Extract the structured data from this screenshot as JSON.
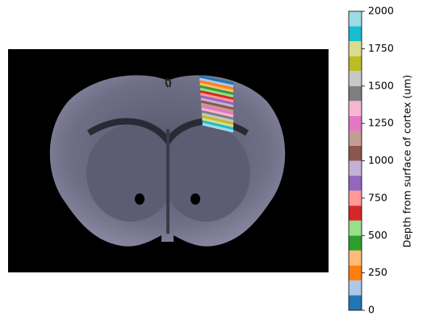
{
  "chart_data": {
    "type": "colorbar",
    "label": "Depth from surface of cortex (um)",
    "ylim": [
      0,
      2000
    ],
    "yticks": [
      0,
      250,
      500,
      750,
      1000,
      1250,
      1500,
      1750,
      2000
    ],
    "bins": [
      0,
      100,
      200,
      300,
      400,
      500,
      600,
      700,
      800,
      900,
      1000,
      1100,
      1200,
      1300,
      1400,
      1500,
      1600,
      1700,
      1800,
      1900,
      2000
    ],
    "colors": [
      "#1f77b4",
      "#aec7e8",
      "#ff7f0e",
      "#ffbb78",
      "#2ca02c",
      "#98df8a",
      "#d62728",
      "#ff9896",
      "#9467bd",
      "#c5b0d5",
      "#8c564b",
      "#c49c94",
      "#e377c2",
      "#f7b6d2",
      "#7f7f7f",
      "#c7c7c7",
      "#bcbd22",
      "#dbdb8d",
      "#17becf",
      "#9edae5"
    ]
  }
}
